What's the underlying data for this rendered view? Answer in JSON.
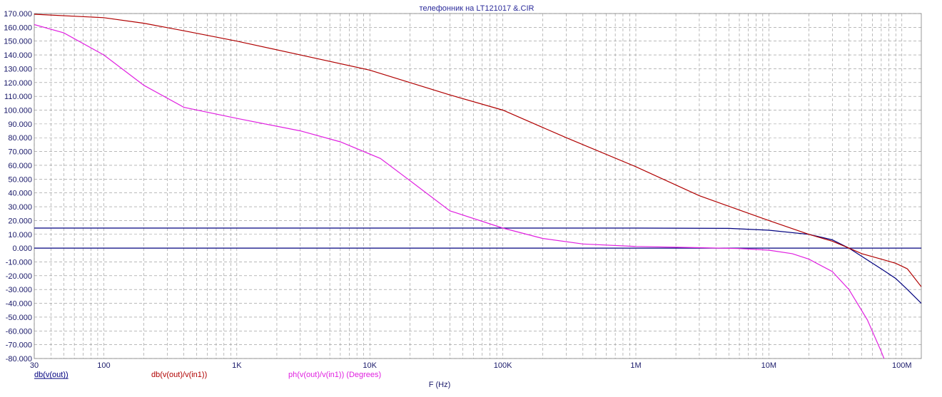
{
  "chart_data": {
    "type": "line",
    "title": "телефонник на LT121017 &.CIR",
    "xlabel": "F (Hz)",
    "ylabel": "",
    "x_scale": "log",
    "xlim": [
      30,
      140000000
    ],
    "ylim": [
      -80,
      170
    ],
    "grid": true,
    "y_ticks": [
      "170.000",
      "160.000",
      "150.000",
      "140.000",
      "130.000",
      "120.000",
      "110.000",
      "100.000",
      "90.000",
      "80.000",
      "70.000",
      "60.000",
      "50.000",
      "40.000",
      "30.000",
      "20.000",
      "10.000",
      "0.000",
      "-10.000",
      "-20.000",
      "-30.000",
      "-40.000",
      "-50.000",
      "-60.000",
      "-70.000",
      "-80.000"
    ],
    "x_ticks": [
      {
        "label": "30",
        "value": 30
      },
      {
        "label": "100",
        "value": 100
      },
      {
        "label": "1K",
        "value": 1000
      },
      {
        "label": "10K",
        "value": 10000
      },
      {
        "label": "100K",
        "value": 100000
      },
      {
        "label": "1M",
        "value": 1000000
      },
      {
        "label": "10M",
        "value": 10000000
      },
      {
        "label": "100M",
        "value": 100000000
      }
    ],
    "zero_line_color": "#00007f",
    "series": [
      {
        "name": "db(v(out))",
        "color": "#00007f",
        "x": [
          30,
          1000,
          100000,
          1000000,
          5000000,
          10000000,
          20000000,
          30000000,
          40000000,
          50000000,
          70000000,
          90000000,
          110000000,
          140000000
        ],
        "y": [
          14.5,
          14.5,
          14.5,
          14.5,
          14.3,
          13,
          10,
          6,
          0,
          -6,
          -15,
          -22,
          -30,
          -40
        ]
      },
      {
        "name": "db(v(out)/v(in1))",
        "color": "#b00000",
        "x": [
          30,
          100,
          200,
          400,
          1000,
          3000,
          10000,
          20000,
          40000,
          100000,
          300000,
          1000000,
          3000000,
          10000000,
          20000000,
          30000000,
          40000000,
          50000000,
          70000000,
          90000000,
          110000000,
          140000000
        ],
        "y": [
          169.5,
          167,
          163,
          157.5,
          150,
          140,
          129,
          120,
          111,
          100,
          80,
          59,
          38,
          20,
          10,
          5,
          0,
          -4,
          -8,
          -11,
          -15,
          -28
        ]
      },
      {
        "name": "ph(v(out)/v(in1)) (Degrees)",
        "color": "#e020e0",
        "x": [
          30,
          50,
          100,
          200,
          400,
          1000,
          3000,
          6000,
          12000,
          20000,
          40000,
          100000,
          200000,
          400000,
          1000000,
          3000000,
          6000000,
          10000000,
          15000000,
          20000000,
          30000000,
          40000000,
          55000000,
          70000000,
          77000000
        ],
        "y": [
          162,
          156,
          140,
          118,
          102,
          94,
          85,
          77,
          65,
          49,
          27,
          14.5,
          7,
          3,
          1.2,
          0.3,
          -0.3,
          -1.5,
          -4,
          -8,
          -17,
          -30,
          -52,
          -75,
          -85
        ]
      }
    ]
  }
}
